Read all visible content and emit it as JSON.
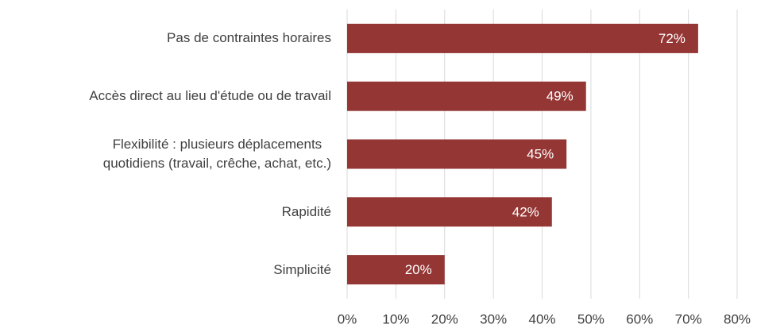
{
  "chart_data": {
    "type": "bar",
    "orientation": "horizontal",
    "categories": [
      "Pas de contraintes horaires",
      "Accès direct au lieu d'étude ou de travail",
      "Flexibilité : plusieurs déplacements\nquotidiens (travail, crêche, achat, etc.)",
      "Rapidité",
      "Simplicité"
    ],
    "values": [
      72,
      49,
      45,
      42,
      20
    ],
    "value_labels": [
      "72%",
      "49%",
      "45%",
      "42%",
      "20%"
    ],
    "color": "#943634",
    "xlim": [
      0,
      80
    ],
    "xticks": [
      {
        "value": 0,
        "label": "0%"
      },
      {
        "value": 10,
        "label": "10%"
      },
      {
        "value": 20,
        "label": "20%"
      },
      {
        "value": 30,
        "label": "30%"
      },
      {
        "value": 40,
        "label": "40%"
      },
      {
        "value": 50,
        "label": "50%"
      },
      {
        "value": 60,
        "label": "60%"
      },
      {
        "value": 70,
        "label": "70%"
      },
      {
        "value": 80,
        "label": "80%"
      }
    ],
    "grid": true
  }
}
